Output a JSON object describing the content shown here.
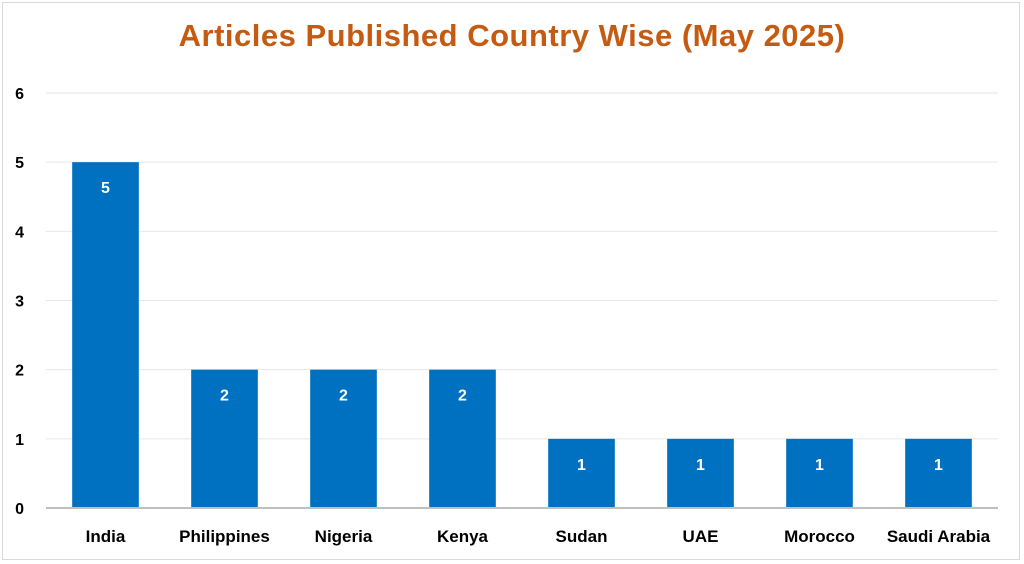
{
  "chart_data": {
    "type": "bar",
    "title": "Articles Published Country Wise (May 2025)",
    "categories": [
      "India",
      "Philippines",
      "Nigeria",
      "Kenya",
      "Sudan",
      "UAE",
      "Morocco",
      "Saudi Arabia"
    ],
    "values": [
      5,
      2,
      2,
      2,
      1,
      1,
      1,
      1
    ],
    "xlabel": "",
    "ylabel": "",
    "ylim": [
      0,
      6
    ],
    "yticks": [
      0,
      1,
      2,
      3,
      4,
      5,
      6
    ],
    "grid": true,
    "legend": "none",
    "data_labels": true,
    "colors": {
      "title": "#C55A11",
      "bar": "#0070C0",
      "grid": "#e6e6e6",
      "axis": "#bfbfbf",
      "data_label": "#FFFFFF"
    }
  }
}
